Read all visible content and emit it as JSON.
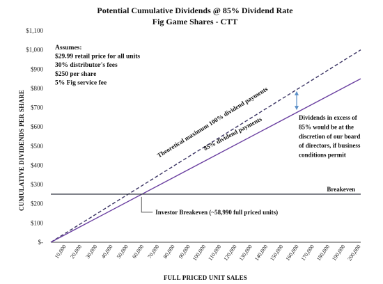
{
  "chart_data": {
    "type": "line",
    "title": "Potential Cumulative Dividends @ 85% Dividend Rate",
    "subtitle": "Fig Game Shares  - CTT",
    "xlabel": "FULL PRICED UNIT SALES",
    "ylabel": "CUMULATIVE DIVIDENDS PER SHARE",
    "xlim": [
      0,
      200000
    ],
    "ylim": [
      0,
      1100
    ],
    "x_ticks": [
      10000,
      20000,
      30000,
      40000,
      50000,
      60000,
      70000,
      80000,
      90000,
      100000,
      110000,
      120000,
      130000,
      140000,
      150000,
      160000,
      170000,
      180000,
      190000,
      200000
    ],
    "x_tick_labels": [
      "10,000",
      "20,000",
      "30,000",
      "40,000",
      "50,000",
      "60,000",
      "70,000",
      "80,000",
      "90,000",
      "100,000",
      "110,000",
      "120,000",
      "130,000",
      "140,000",
      "150,000",
      "160,000",
      "170,000",
      "180,000",
      "190,000",
      "200,000"
    ],
    "y_ticks": [
      0,
      100,
      200,
      300,
      400,
      500,
      600,
      700,
      800,
      900,
      1000,
      1100
    ],
    "y_tick_labels": [
      "$-",
      "$100",
      "$200",
      "$300",
      "$400",
      "$500",
      "$600",
      "$700",
      "$800",
      "$900",
      "$1,000",
      "$1,100"
    ],
    "grid": false,
    "series": [
      {
        "name": "Theoretical maximum 100% dividend payments",
        "style": "dashed",
        "color": "#3b3464",
        "x": [
          0,
          200000
        ],
        "y": [
          0,
          1000
        ],
        "label_at": [
          105000,
          615
        ]
      },
      {
        "name": "85% dividend payments",
        "style": "solid",
        "color": "#6a3fa0",
        "x": [
          0,
          200000
        ],
        "y": [
          0,
          850
        ],
        "label_at": [
          118000,
          555
        ]
      },
      {
        "name": "Breakeven",
        "style": "solid",
        "color": "#3a3f4a",
        "x": [
          0,
          200000
        ],
        "y": [
          250,
          250
        ],
        "label_at": [
          196500,
          265
        ]
      }
    ],
    "notes": {
      "lines": [
        "Assumes:",
        "$29.99 retail price for all units",
        "30% distributor's fees",
        "$250 per share",
        "5% Fig service fee"
      ]
    },
    "annotations": {
      "investor_breakeven": {
        "text": "Investor Breakeven (~58,990 full priced units)",
        "x": 58990,
        "y": 250
      },
      "excess": {
        "lines": [
          "Dividends in excess of",
          "85% would be at the",
          "discretion of our board",
          "of directors, if business",
          "conditions permit"
        ],
        "x": 160000,
        "y_from": 680,
        "y_to": 800
      }
    },
    "colors": {
      "arrow": "#5b8fc7",
      "axis": "#444444"
    }
  }
}
